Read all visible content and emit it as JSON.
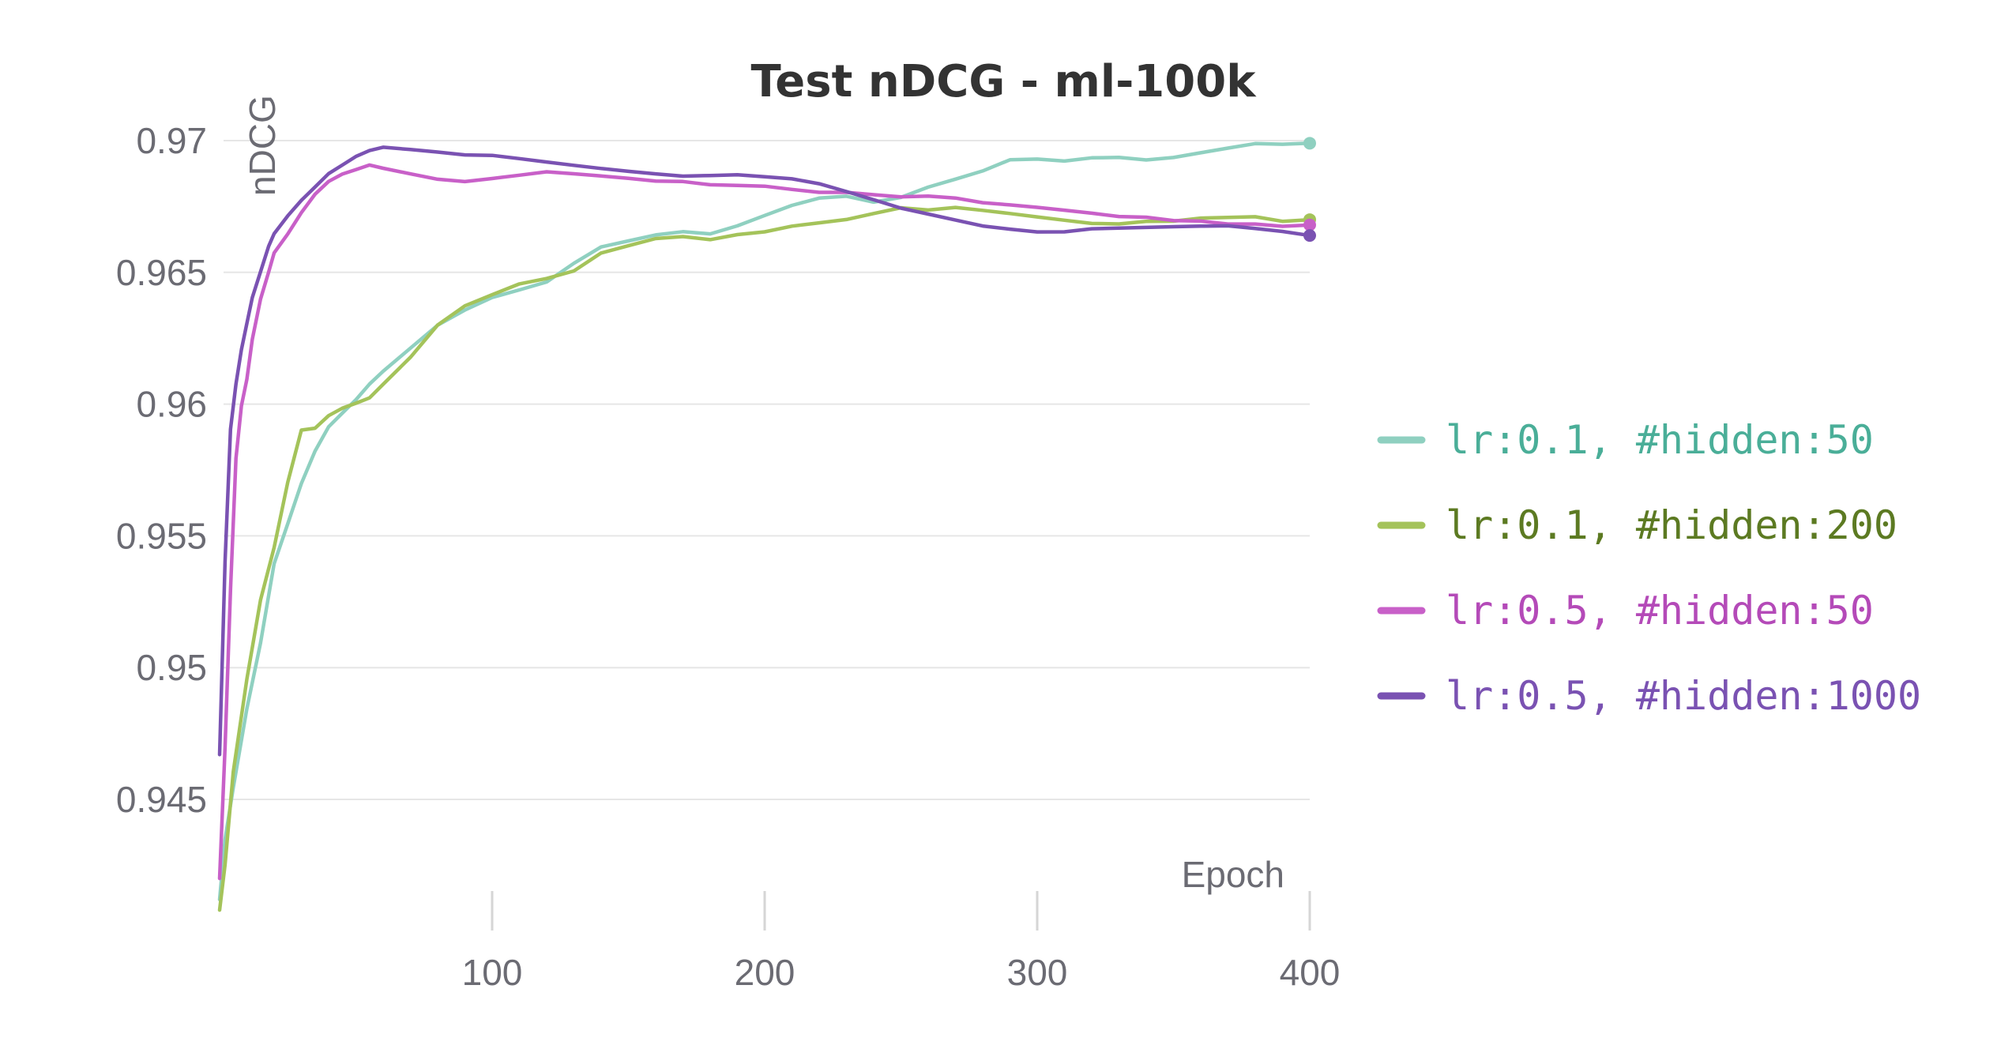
{
  "chart_data": {
    "type": "line",
    "title": "Test nDCG - ml-100k",
    "xlabel": "Epoch",
    "ylabel": "nDCG",
    "xlim": [
      0,
      400
    ],
    "ylim": [
      0.941,
      0.9705
    ],
    "xticks": [
      100,
      200,
      300,
      400
    ],
    "xtick_labels": [
      "100",
      "200",
      "300",
      "400"
    ],
    "yticks": [
      0.945,
      0.95,
      0.955,
      0.96,
      0.965,
      0.97
    ],
    "ytick_labels": [
      "0.945",
      "0.95",
      "0.955",
      "0.96",
      "0.965",
      "0.97"
    ],
    "grid": true,
    "legend_position": "right",
    "series": [
      {
        "name": "lr:0.1, #hidden:50",
        "color": "#8fd0c0",
        "text_color": "#4aae98",
        "x": [
          0,
          2,
          5,
          10,
          15,
          20,
          25,
          30,
          35,
          40,
          45,
          50,
          55,
          60,
          70,
          80,
          90,
          100,
          110,
          120,
          130,
          140,
          150,
          160,
          170,
          180,
          190,
          200,
          210,
          220,
          230,
          240,
          250,
          260,
          270,
          280,
          290,
          300,
          310,
          320,
          330,
          340,
          350,
          360,
          370,
          380,
          390,
          400
        ],
        "y": [
          0.9412,
          0.9435,
          0.9455,
          0.9485,
          0.951,
          0.954,
          0.9555,
          0.957,
          0.9582,
          0.9591,
          0.9596,
          0.9601,
          0.9607,
          0.9612,
          0.9621,
          0.963,
          0.9636,
          0.9641,
          0.9644,
          0.9647,
          0.9654,
          0.966,
          0.9662,
          0.9664,
          0.9665,
          0.9664,
          0.9667,
          0.9671,
          0.9675,
          0.9678,
          0.9679,
          0.9677,
          0.9679,
          0.9683,
          0.9686,
          0.9689,
          0.9693,
          0.9693,
          0.9692,
          0.9693,
          0.9693,
          0.9692,
          0.9693,
          0.9695,
          0.9697,
          0.9699,
          0.9699,
          0.9699
        ]
      },
      {
        "name": "lr:0.1, #hidden:200",
        "color": "#a4c35a",
        "text_color": "#5c7a22",
        "x": [
          0,
          2,
          5,
          10,
          15,
          20,
          25,
          30,
          35,
          40,
          45,
          50,
          55,
          60,
          70,
          80,
          90,
          100,
          110,
          120,
          130,
          140,
          150,
          160,
          170,
          180,
          190,
          200,
          210,
          220,
          230,
          240,
          250,
          260,
          270,
          280,
          290,
          300,
          310,
          320,
          330,
          340,
          350,
          360,
          370,
          380,
          390,
          400
        ],
        "y": [
          0.9408,
          0.9425,
          0.946,
          0.9495,
          0.9525,
          0.9545,
          0.957,
          0.959,
          0.9591,
          0.9596,
          0.9599,
          0.9601,
          0.9603,
          0.9608,
          0.9618,
          0.963,
          0.9637,
          0.9641,
          0.9645,
          0.9647,
          0.965,
          0.9657,
          0.966,
          0.9663,
          0.9664,
          0.9663,
          0.9665,
          0.9666,
          0.9668,
          0.9669,
          0.967,
          0.9672,
          0.9674,
          0.9673,
          0.9674,
          0.9673,
          0.9672,
          0.9671,
          0.967,
          0.9669,
          0.9669,
          0.967,
          0.967,
          0.9671,
          0.9671,
          0.9671,
          0.9669,
          0.967
        ]
      },
      {
        "name": "lr:0.5, #hidden:50",
        "color": "#c860c8",
        "text_color": "#b44ab8",
        "x": [
          0,
          2,
          4,
          6,
          8,
          10,
          12,
          15,
          18,
          20,
          25,
          30,
          35,
          40,
          45,
          50,
          55,
          60,
          70,
          80,
          90,
          100,
          110,
          120,
          130,
          140,
          150,
          160,
          170,
          180,
          190,
          200,
          210,
          220,
          230,
          240,
          250,
          260,
          270,
          280,
          290,
          300,
          310,
          320,
          330,
          340,
          350,
          360,
          370,
          380,
          390,
          400
        ],
        "y": [
          0.942,
          0.947,
          0.953,
          0.958,
          0.96,
          0.961,
          0.9625,
          0.964,
          0.965,
          0.9657,
          0.9664,
          0.9672,
          0.9679,
          0.9684,
          0.9687,
          0.9689,
          0.9691,
          0.969,
          0.9688,
          0.9686,
          0.9685,
          0.9686,
          0.9687,
          0.9688,
          0.9687,
          0.9686,
          0.9685,
          0.9684,
          0.9684,
          0.9683,
          0.9683,
          0.9683,
          0.9682,
          0.9681,
          0.9681,
          0.968,
          0.9679,
          0.9679,
          0.9678,
          0.9676,
          0.9675,
          0.9674,
          0.9673,
          0.9672,
          0.9671,
          0.9671,
          0.967,
          0.967,
          0.9669,
          0.9669,
          0.9668,
          0.9668
        ]
      },
      {
        "name": "lr:0.5, #hidden:1000",
        "color": "#7a52b2",
        "text_color": "#7a52b2",
        "x": [
          0,
          2,
          4,
          6,
          8,
          10,
          12,
          15,
          18,
          20,
          25,
          30,
          35,
          40,
          45,
          50,
          55,
          60,
          70,
          80,
          90,
          100,
          110,
          120,
          130,
          140,
          150,
          160,
          170,
          180,
          190,
          200,
          210,
          220,
          230,
          240,
          250,
          260,
          270,
          280,
          290,
          300,
          310,
          320,
          330,
          340,
          350,
          360,
          370,
          380,
          390,
          400
        ],
        "y": [
          0.9467,
          0.954,
          0.959,
          0.9607,
          0.962,
          0.963,
          0.964,
          0.965,
          0.966,
          0.9665,
          0.9672,
          0.9678,
          0.9683,
          0.9688,
          0.9691,
          0.9694,
          0.9696,
          0.9697,
          0.9696,
          0.9695,
          0.9694,
          0.9694,
          0.9693,
          0.9692,
          0.9691,
          0.969,
          0.9689,
          0.9688,
          0.9687,
          0.9687,
          0.9687,
          0.9686,
          0.9685,
          0.9683,
          0.968,
          0.9677,
          0.9674,
          0.9672,
          0.967,
          0.9668,
          0.9667,
          0.9666,
          0.9666,
          0.9667,
          0.9667,
          0.9667,
          0.9667,
          0.9667,
          0.9667,
          0.9666,
          0.9665,
          0.9664
        ]
      }
    ]
  }
}
